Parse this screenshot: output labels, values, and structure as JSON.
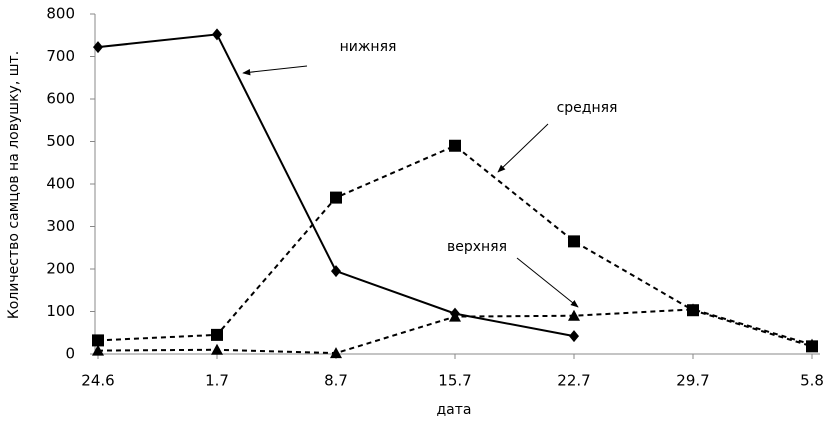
{
  "chart_data": {
    "type": "line",
    "x_label": "дата",
    "y_label": "Количество самцов на ловушку, шт.",
    "categories": [
      "24.6",
      "1.7",
      "8.7",
      "15.7",
      "22.7",
      "29.7",
      "5.8"
    ],
    "series": [
      {
        "name": "нижняя",
        "color": "#000000",
        "dash": "solid",
        "marker": "diamond",
        "values": [
          722,
          752,
          195,
          95,
          42,
          null,
          null
        ]
      },
      {
        "name": "средняя",
        "color": "#000000",
        "dash": "dashed",
        "marker": "square",
        "values": [
          32,
          45,
          368,
          490,
          265,
          103,
          18
        ]
      },
      {
        "name": "верхняя",
        "color": "#000000",
        "dash": "dashed",
        "marker": "triangle",
        "values": [
          8,
          10,
          2,
          88,
          90,
          105,
          22
        ]
      }
    ],
    "ylim": [
      0,
      800
    ],
    "yticks": [
      0,
      100,
      200,
      300,
      400,
      500,
      600,
      700,
      800
    ],
    "grid": false
  }
}
